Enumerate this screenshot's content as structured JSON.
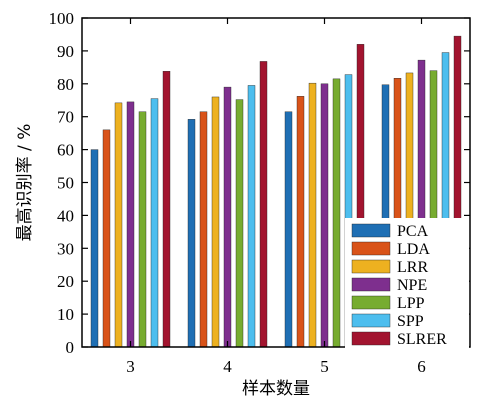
{
  "chart_data": {
    "type": "bar",
    "categories": [
      "3",
      "4",
      "5",
      "6"
    ],
    "series": [
      {
        "name": "PCA",
        "color": "#1f6fb4",
        "values": [
          60,
          69.2,
          71.5,
          79.7
        ]
      },
      {
        "name": "LDA",
        "color": "#d95319",
        "values": [
          66,
          71.5,
          76.2,
          81.7
        ]
      },
      {
        "name": "LRR",
        "color": "#edb120",
        "values": [
          74.2,
          76,
          80.2,
          83.3
        ]
      },
      {
        "name": "NPE",
        "color": "#7e2f8e",
        "values": [
          74.5,
          79,
          80,
          87.2
        ]
      },
      {
        "name": "LPP",
        "color": "#77ac30",
        "values": [
          71.5,
          75.2,
          81.5,
          84
        ]
      },
      {
        "name": "SPP",
        "color": "#4dbeee",
        "values": [
          75.5,
          79.5,
          82.8,
          89.5
        ]
      },
      {
        "name": "SLRER",
        "color": "#a2142f",
        "values": [
          83.8,
          86.8,
          92,
          94.5
        ]
      }
    ],
    "title": "",
    "xlabel": "样本数量",
    "ylabel": "最高识别率 / %",
    "ylim": [
      0,
      100
    ],
    "yticks": [
      0,
      10,
      20,
      30,
      40,
      50,
      60,
      70,
      80,
      90,
      100
    ],
    "grid": false,
    "legend_position": "bottom-right"
  }
}
